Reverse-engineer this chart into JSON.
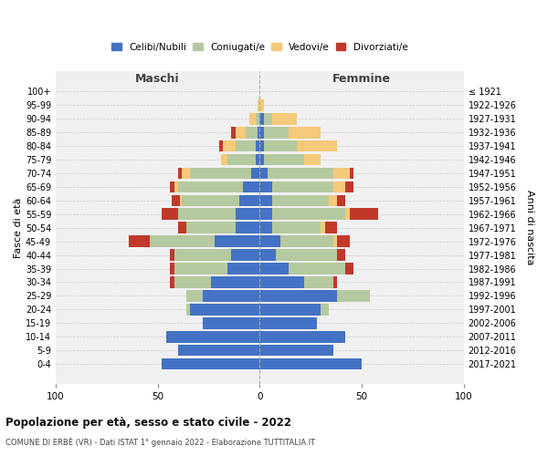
{
  "age_groups": [
    "0-4",
    "5-9",
    "10-14",
    "15-19",
    "20-24",
    "25-29",
    "30-34",
    "35-39",
    "40-44",
    "45-49",
    "50-54",
    "55-59",
    "60-64",
    "65-69",
    "70-74",
    "75-79",
    "80-84",
    "85-89",
    "90-94",
    "95-99",
    "100+"
  ],
  "birth_years": [
    "2017-2021",
    "2012-2016",
    "2007-2011",
    "2002-2006",
    "1997-2001",
    "1992-1996",
    "1987-1991",
    "1982-1986",
    "1977-1981",
    "1972-1976",
    "1967-1971",
    "1962-1966",
    "1957-1961",
    "1952-1956",
    "1947-1951",
    "1942-1946",
    "1937-1941",
    "1932-1936",
    "1927-1931",
    "1922-1926",
    "≤ 1921"
  ],
  "colors": {
    "celibe": "#4472C4",
    "coniugato": "#b5c9a0",
    "vedovo": "#f5c97a",
    "divorziato": "#c0392b"
  },
  "male": {
    "celibe": [
      48,
      40,
      46,
      28,
      34,
      28,
      24,
      16,
      14,
      22,
      12,
      12,
      10,
      8,
      4,
      2,
      2,
      1,
      0,
      0,
      0
    ],
    "coniugato": [
      0,
      0,
      0,
      0,
      2,
      8,
      18,
      26,
      28,
      32,
      24,
      28,
      28,
      32,
      30,
      14,
      10,
      6,
      2,
      0,
      0
    ],
    "vedovo": [
      0,
      0,
      0,
      0,
      0,
      0,
      0,
      0,
      0,
      0,
      0,
      0,
      1,
      2,
      4,
      3,
      6,
      5,
      3,
      1,
      0
    ],
    "divorziato": [
      0,
      0,
      0,
      0,
      0,
      0,
      2,
      2,
      2,
      10,
      4,
      8,
      4,
      2,
      2,
      0,
      2,
      2,
      0,
      0,
      0
    ]
  },
  "female": {
    "nubile": [
      50,
      36,
      42,
      28,
      30,
      38,
      22,
      14,
      8,
      10,
      6,
      6,
      6,
      6,
      4,
      2,
      2,
      2,
      2,
      0,
      0
    ],
    "coniugata": [
      0,
      0,
      0,
      0,
      4,
      16,
      14,
      28,
      30,
      26,
      24,
      36,
      28,
      30,
      32,
      20,
      16,
      12,
      4,
      0,
      0
    ],
    "vedova": [
      0,
      0,
      0,
      0,
      0,
      0,
      0,
      0,
      0,
      2,
      2,
      2,
      4,
      6,
      8,
      8,
      20,
      16,
      12,
      2,
      0
    ],
    "divorziata": [
      0,
      0,
      0,
      0,
      0,
      0,
      2,
      4,
      4,
      6,
      6,
      14,
      4,
      4,
      2,
      0,
      0,
      0,
      0,
      0,
      0
    ]
  },
  "xlim": [
    -100,
    100
  ],
  "xticks": [
    -100,
    -50,
    0,
    50,
    100
  ],
  "xticklabels": [
    "100",
    "50",
    "0",
    "50",
    "100"
  ],
  "title": "Popolazione per età, sesso e stato civile - 2022",
  "subtitle": "COMUNE DI ERBÈ (VR) - Dati ISTAT 1° gennaio 2022 - Elaborazione TUTTITALIA.IT",
  "ylabel_left": "Fasce di età",
  "ylabel_right": "Anni di nascita",
  "label_maschi": "Maschi",
  "label_femmine": "Femmine",
  "legend_labels": [
    "Celibi/Nubili",
    "Coniugati/e",
    "Vedovi/e",
    "Divorziati/e"
  ],
  "background_color": "#f0f0f0",
  "bar_height": 0.85
}
